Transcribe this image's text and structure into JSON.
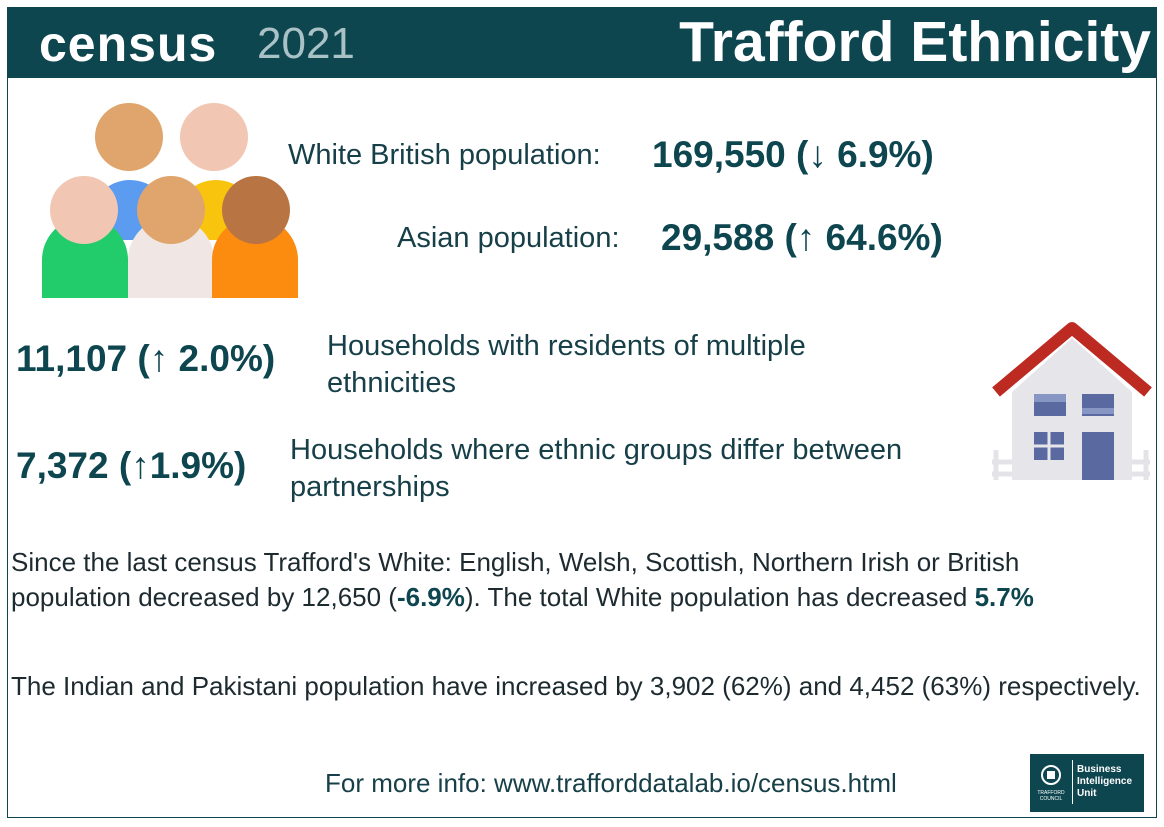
{
  "header": {
    "logo_word": "census",
    "logo_year": "2021",
    "title": "Trafford Ethnicity"
  },
  "stats": [
    {
      "label": "White British population:",
      "value": "169,550 (↓ 6.9%)"
    },
    {
      "label": "Asian population:",
      "value": "29,588 (↑ 64.6%)"
    },
    {
      "value": "11,107 (↑ 2.0%)",
      "label": "Households with residents of multiple ethnicities"
    },
    {
      "value": "7,372 (↑1.9%)",
      "label": "Households where ethnic groups differ between partnerships"
    }
  ],
  "paragraphs": [
    [
      "Since the last census Trafford's White: English, Welsh, Scottish, Northern Irish or British population decreased by 12,650 (",
      "-6.9%",
      "). The total White population has decreased ",
      "5.7%"
    ],
    [
      "The Indian and Pakistani population have increased by 3,902 (62%) and 4,452 (63%) respectively."
    ]
  ],
  "footer": {
    "info": "For more info: www.trafforddatalab.io/census.html",
    "council": "TRAFFORD COUNCIL",
    "unit": "Business Intelligence Unit"
  }
}
